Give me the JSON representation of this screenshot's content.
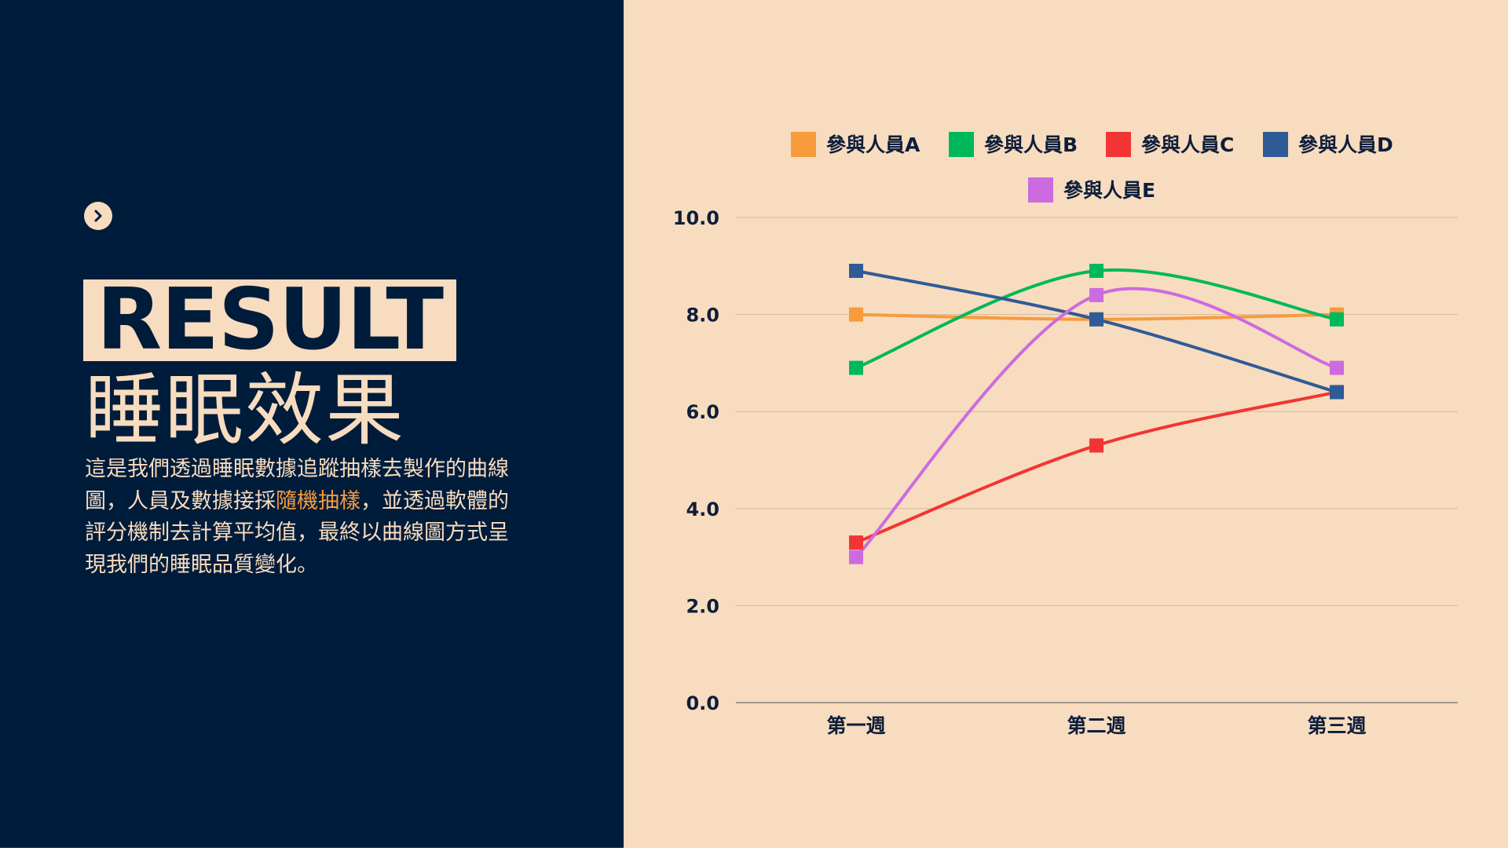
{
  "left_panel": {
    "title": "RESULT",
    "subtitle": "睡眠效果",
    "description": {
      "part1": "這是我們透過睡眠數據追蹤抽樣去製作的曲線圖，人員及數據接採",
      "highlight": "隨機抽樣",
      "part2": "，並透過軟體的評分機制去計算平均值，最終以曲線圖方式呈現我們的睡眠品質變化。"
    },
    "nav_icon": "chevron-right-icon"
  },
  "colors": {
    "left_bg": "#001c3b",
    "right_bg": "#f8dcbf",
    "highlight": "#f79b3c",
    "text_dark": "#0e1e3a"
  },
  "chart_data": {
    "type": "line",
    "categories": [
      "第一週",
      "第二週",
      "第三週"
    ],
    "series": [
      {
        "name": "參與人員A",
        "color": "#f79b3c",
        "values": [
          8.0,
          7.9,
          8.0
        ]
      },
      {
        "name": "參與人員B",
        "color": "#00b85c",
        "values": [
          6.9,
          8.9,
          7.9
        ]
      },
      {
        "name": "參與人員C",
        "color": "#f33434",
        "values": [
          3.3,
          5.3,
          6.4
        ]
      },
      {
        "name": "參與人員D",
        "color": "#2f5b96",
        "values": [
          8.9,
          7.9,
          6.4
        ]
      },
      {
        "name": "參與人員E",
        "color": "#cc6be0",
        "values": [
          3.0,
          8.4,
          6.9
        ]
      }
    ],
    "yticks": [
      "0.0",
      "2.0",
      "4.0",
      "6.0",
      "8.0",
      "10.0"
    ],
    "ylim": [
      0,
      10
    ],
    "grid": true,
    "legend_position": "top-center",
    "smooth": true
  }
}
